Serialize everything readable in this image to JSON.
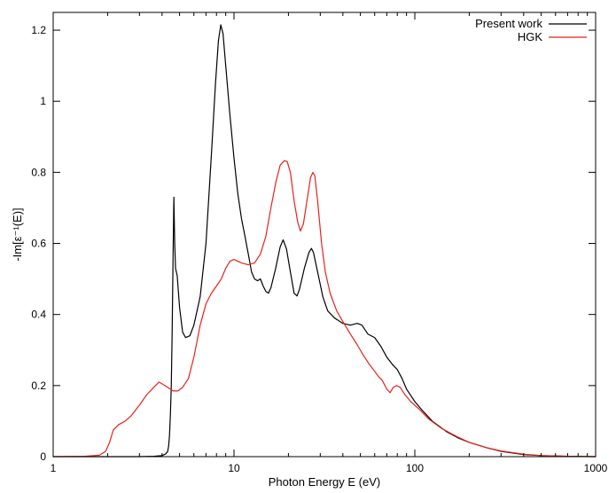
{
  "chart_data": {
    "type": "line",
    "xlabel": "Photon Energy E (eV)",
    "ylabel": "-Im[ε⁻¹(E)]",
    "xscale": "log",
    "xlim": [
      1,
      1000
    ],
    "ylim": [
      0,
      1.25
    ],
    "x_tick_labels": [
      "1",
      "10",
      "100",
      "1000"
    ],
    "x_ticks": [
      1,
      10,
      100,
      1000
    ],
    "y_tick_labels": [
      "0",
      "0.2",
      "0.4",
      "0.6",
      "0.8",
      "1",
      "1.2"
    ],
    "y_ticks": [
      0,
      0.2,
      0.4,
      0.6,
      0.8,
      1.0,
      1.2
    ],
    "grid": false,
    "legend_position": "top-right",
    "series": [
      {
        "name": "Present work",
        "color": "#000000",
        "points": [
          [
            1,
            0
          ],
          [
            3,
            0
          ],
          [
            3.6,
            0.001
          ],
          [
            4.0,
            0.003
          ],
          [
            4.2,
            0.008
          ],
          [
            4.3,
            0.015
          ],
          [
            4.35,
            0.03
          ],
          [
            4.4,
            0.06
          ],
          [
            4.45,
            0.12
          ],
          [
            4.5,
            0.2
          ],
          [
            4.55,
            0.35
          ],
          [
            4.6,
            0.55
          ],
          [
            4.65,
            0.73
          ],
          [
            4.7,
            0.6
          ],
          [
            4.75,
            0.53
          ],
          [
            4.85,
            0.51
          ],
          [
            5.0,
            0.42
          ],
          [
            5.2,
            0.35
          ],
          [
            5.4,
            0.335
          ],
          [
            5.7,
            0.34
          ],
          [
            6.0,
            0.37
          ],
          [
            6.5,
            0.45
          ],
          [
            7.0,
            0.6
          ],
          [
            7.5,
            0.85
          ],
          [
            7.9,
            1.05
          ],
          [
            8.2,
            1.17
          ],
          [
            8.45,
            1.215
          ],
          [
            8.7,
            1.19
          ],
          [
            9.0,
            1.1
          ],
          [
            9.5,
            0.96
          ],
          [
            10.0,
            0.84
          ],
          [
            10.5,
            0.74
          ],
          [
            11.0,
            0.67
          ],
          [
            11.5,
            0.62
          ],
          [
            12.0,
            0.57
          ],
          [
            12.5,
            0.52
          ],
          [
            13.0,
            0.5
          ],
          [
            13.5,
            0.495
          ],
          [
            14.0,
            0.5
          ],
          [
            14.5,
            0.48
          ],
          [
            15.0,
            0.465
          ],
          [
            15.5,
            0.46
          ],
          [
            16.0,
            0.475
          ],
          [
            17.0,
            0.53
          ],
          [
            18.0,
            0.59
          ],
          [
            18.7,
            0.61
          ],
          [
            19.5,
            0.585
          ],
          [
            20.5,
            0.52
          ],
          [
            21.5,
            0.46
          ],
          [
            22.3,
            0.452
          ],
          [
            23.0,
            0.47
          ],
          [
            24.5,
            0.53
          ],
          [
            26.0,
            0.575
          ],
          [
            26.8,
            0.586
          ],
          [
            27.5,
            0.575
          ],
          [
            29.0,
            0.52
          ],
          [
            31.0,
            0.45
          ],
          [
            33.0,
            0.41
          ],
          [
            36.0,
            0.39
          ],
          [
            40.0,
            0.375
          ],
          [
            44.0,
            0.37
          ],
          [
            48.0,
            0.375
          ],
          [
            51.0,
            0.37
          ],
          [
            55.0,
            0.345
          ],
          [
            60.0,
            0.335
          ],
          [
            65.0,
            0.31
          ],
          [
            70.0,
            0.28
          ],
          [
            75.0,
            0.26
          ],
          [
            80.0,
            0.245
          ],
          [
            85.0,
            0.22
          ],
          [
            90.0,
            0.19
          ],
          [
            100.0,
            0.155
          ],
          [
            110.0,
            0.13
          ],
          [
            125.0,
            0.1
          ],
          [
            150.0,
            0.07
          ],
          [
            175.0,
            0.052
          ],
          [
            200.0,
            0.04
          ],
          [
            250.0,
            0.025
          ],
          [
            300.0,
            0.015
          ],
          [
            400.0,
            0.006
          ],
          [
            500.0,
            0.003
          ],
          [
            700.0,
            0.001
          ],
          [
            1000.0,
            0
          ]
        ]
      },
      {
        "name": "HGK",
        "color": "#e8211b",
        "points": [
          [
            1,
            0
          ],
          [
            1.5,
            0.001
          ],
          [
            1.8,
            0.004
          ],
          [
            1.95,
            0.015
          ],
          [
            2.05,
            0.04
          ],
          [
            2.15,
            0.075
          ],
          [
            2.3,
            0.09
          ],
          [
            2.5,
            0.1
          ],
          [
            2.7,
            0.115
          ],
          [
            3.0,
            0.145
          ],
          [
            3.3,
            0.175
          ],
          [
            3.6,
            0.195
          ],
          [
            3.85,
            0.21
          ],
          [
            4.0,
            0.205
          ],
          [
            4.3,
            0.195
          ],
          [
            4.6,
            0.185
          ],
          [
            4.9,
            0.185
          ],
          [
            5.2,
            0.195
          ],
          [
            5.6,
            0.22
          ],
          [
            6.0,
            0.28
          ],
          [
            6.5,
            0.37
          ],
          [
            7.0,
            0.43
          ],
          [
            7.5,
            0.46
          ],
          [
            8.0,
            0.48
          ],
          [
            8.5,
            0.5
          ],
          [
            9.0,
            0.53
          ],
          [
            9.5,
            0.55
          ],
          [
            10.0,
            0.555
          ],
          [
            10.5,
            0.55
          ],
          [
            11.0,
            0.545
          ],
          [
            12.0,
            0.54
          ],
          [
            13.0,
            0.545
          ],
          [
            14.0,
            0.57
          ],
          [
            15.0,
            0.62
          ],
          [
            16.0,
            0.7
          ],
          [
            17.0,
            0.77
          ],
          [
            18.0,
            0.82
          ],
          [
            19.0,
            0.833
          ],
          [
            19.7,
            0.83
          ],
          [
            20.5,
            0.8
          ],
          [
            21.5,
            0.72
          ],
          [
            22.5,
            0.66
          ],
          [
            23.3,
            0.635
          ],
          [
            24.2,
            0.655
          ],
          [
            25.5,
            0.73
          ],
          [
            26.5,
            0.785
          ],
          [
            27.3,
            0.8
          ],
          [
            28.0,
            0.79
          ],
          [
            29.0,
            0.72
          ],
          [
            30.5,
            0.6
          ],
          [
            32.0,
            0.52
          ],
          [
            34.0,
            0.46
          ],
          [
            37.0,
            0.41
          ],
          [
            40.0,
            0.38
          ],
          [
            44.0,
            0.345
          ],
          [
            48.0,
            0.315
          ],
          [
            52.0,
            0.285
          ],
          [
            56.0,
            0.26
          ],
          [
            60.0,
            0.24
          ],
          [
            63.0,
            0.225
          ],
          [
            66.0,
            0.215
          ],
          [
            70.0,
            0.19
          ],
          [
            73.0,
            0.18
          ],
          [
            76.0,
            0.195
          ],
          [
            79.0,
            0.2
          ],
          [
            83.0,
            0.195
          ],
          [
            88.0,
            0.175
          ],
          [
            95.0,
            0.155
          ],
          [
            105.0,
            0.135
          ],
          [
            120.0,
            0.105
          ],
          [
            140.0,
            0.08
          ],
          [
            170.0,
            0.057
          ],
          [
            200.0,
            0.04
          ],
          [
            250.0,
            0.025
          ],
          [
            300.0,
            0.016
          ],
          [
            400.0,
            0.007
          ],
          [
            500.0,
            0.003
          ],
          [
            700.0,
            0.001
          ],
          [
            1000.0,
            0
          ]
        ]
      }
    ]
  }
}
